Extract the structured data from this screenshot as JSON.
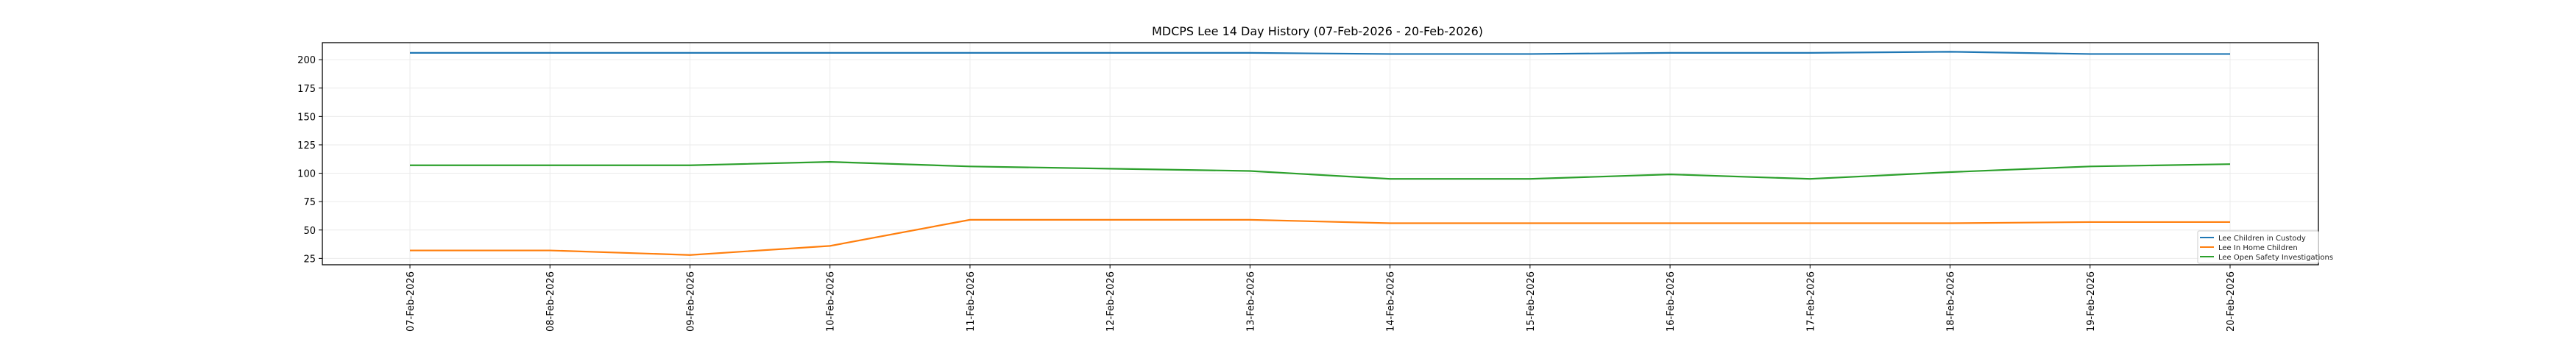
{
  "chart_data": {
    "type": "line",
    "title": "MDCPS Lee 14 Day History (07-Feb-2026 - 20-Feb-2026)",
    "xlabel": "",
    "ylabel": "",
    "categories": [
      "07-Feb-2026",
      "08-Feb-2026",
      "09-Feb-2026",
      "10-Feb-2026",
      "11-Feb-2026",
      "12-Feb-2026",
      "13-Feb-2026",
      "14-Feb-2026",
      "15-Feb-2026",
      "16-Feb-2026",
      "17-Feb-2026",
      "18-Feb-2026",
      "19-Feb-2026",
      "20-Feb-2026"
    ],
    "series": [
      {
        "name": "Lee Children in Custody",
        "color": "#1f77b4",
        "values": [
          206,
          206,
          206,
          206,
          206,
          206,
          206,
          205,
          205,
          206,
          206,
          207,
          205,
          205
        ]
      },
      {
        "name": "Lee In Home Children",
        "color": "#ff7f0e",
        "values": [
          32,
          32,
          28,
          36,
          59,
          59,
          59,
          56,
          56,
          56,
          56,
          56,
          57,
          57
        ]
      },
      {
        "name": "Lee Open Safety Investigations",
        "color": "#2ca02c",
        "values": [
          107,
          107,
          107,
          110,
          106,
          104,
          102,
          95,
          95,
          99,
          95,
          101,
          106,
          108
        ]
      }
    ],
    "ylim": [
      19.4,
      215
    ],
    "yticks": [
      25,
      50,
      75,
      100,
      125,
      150,
      175,
      200
    ],
    "grid": true,
    "legend_position": "lower-right"
  }
}
